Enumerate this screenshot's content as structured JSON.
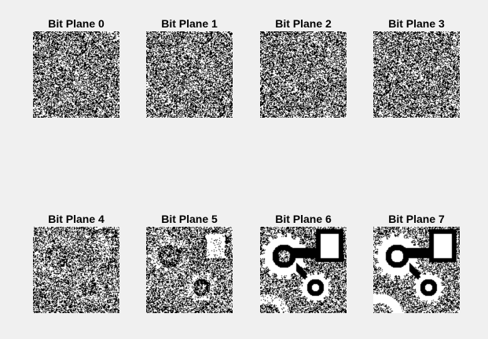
{
  "planes": [
    {
      "label": "Bit Plane 0",
      "bit": 0
    },
    {
      "label": "Bit Plane 1",
      "bit": 1
    },
    {
      "label": "Bit Plane 2",
      "bit": 2
    },
    {
      "label": "Bit Plane 3",
      "bit": 3
    },
    {
      "label": "Bit Plane 4",
      "bit": 4
    },
    {
      "label": "Bit Plane 5",
      "bit": 5
    },
    {
      "label": "Bit Plane 6",
      "bit": 6
    },
    {
      "label": "Bit Plane 7",
      "bit": 7
    }
  ],
  "colors": {
    "background": "#f0f0f0",
    "foreground": "#000000",
    "image_white": "#ffffff"
  }
}
